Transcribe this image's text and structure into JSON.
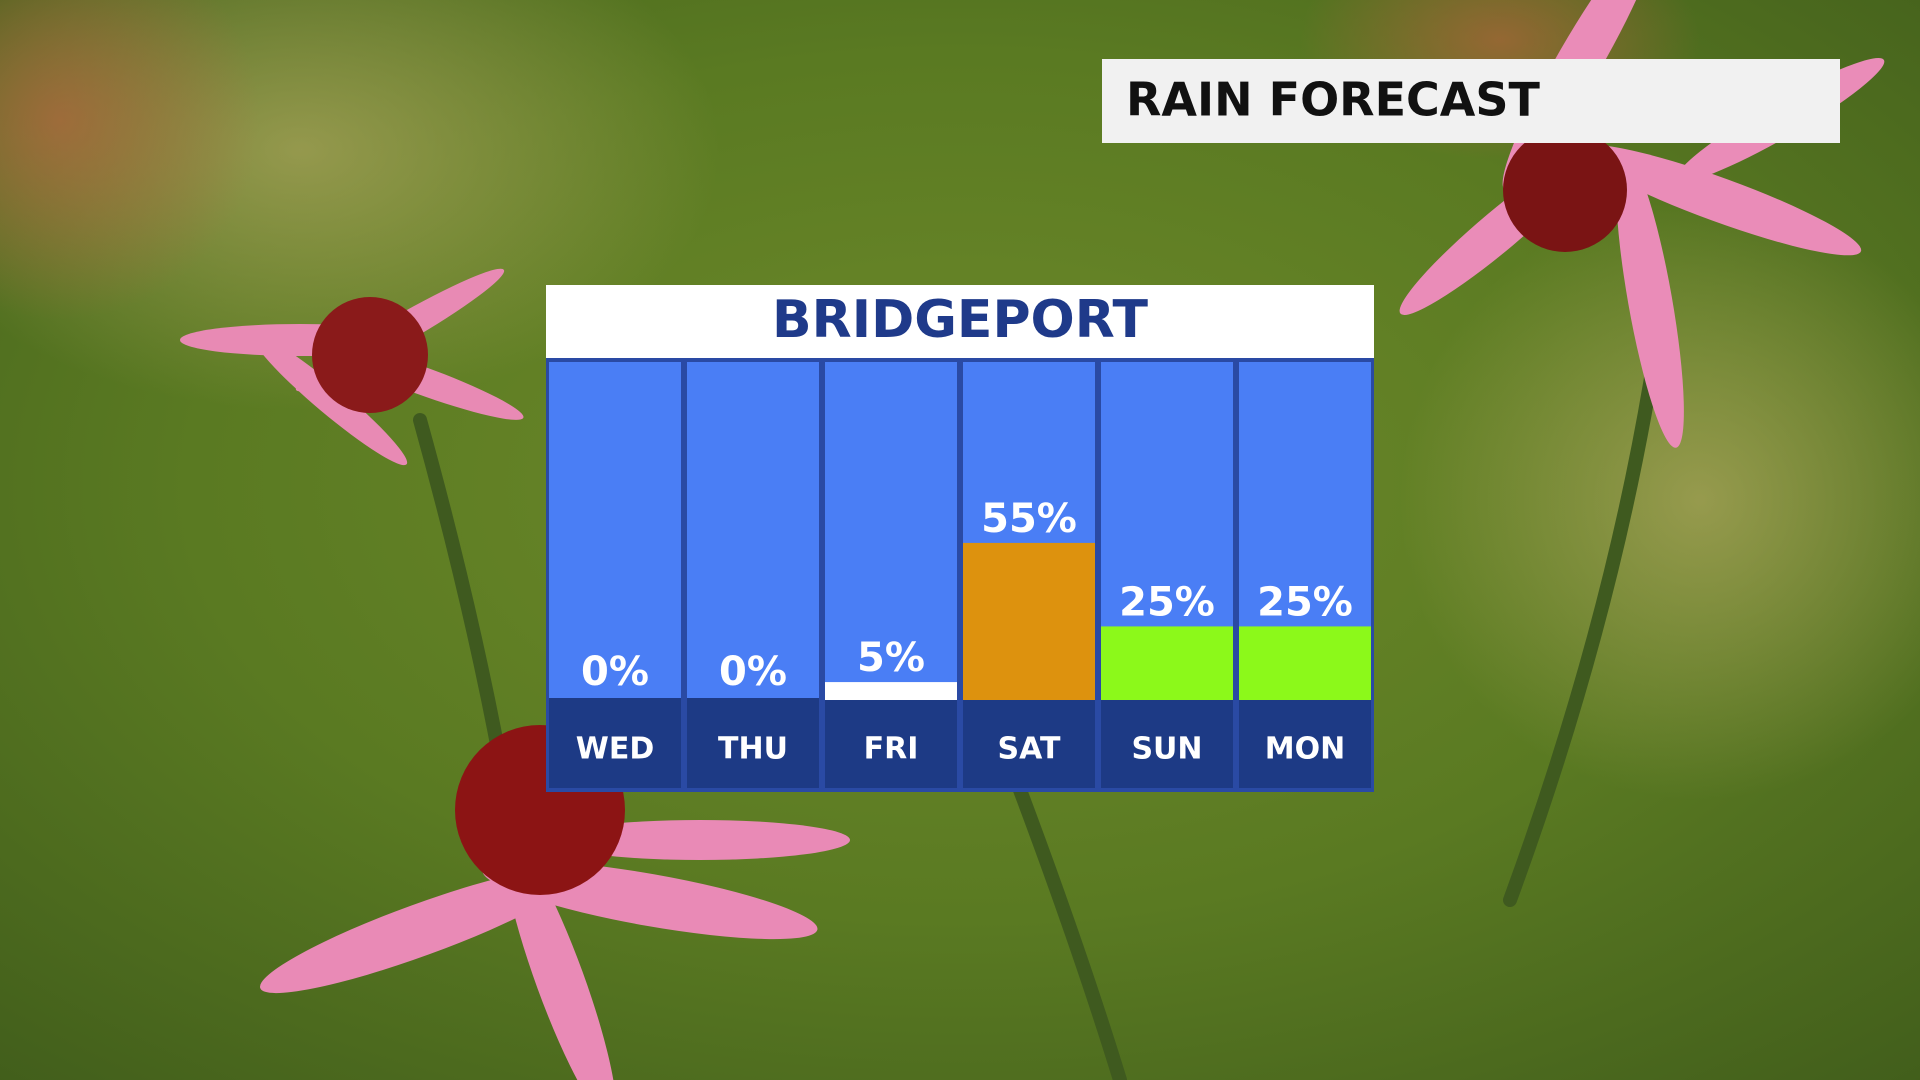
{
  "header": {
    "title": "RAIN FORECAST"
  },
  "chart_data": {
    "type": "bar",
    "title": "BRIDGEPORT",
    "categories": [
      "WED",
      "THU",
      "FRI",
      "SAT",
      "SUN",
      "MON"
    ],
    "values": [
      0,
      0,
      5,
      55,
      25,
      25
    ],
    "value_labels": [
      "0%",
      "0%",
      "5%",
      "55%",
      "25%",
      "25%"
    ],
    "colors": [
      "#ffffff",
      "#ffffff",
      "#ffffff",
      "#dd920e",
      "#8cf91a",
      "#8cf91a"
    ],
    "ylim": [
      0,
      120
    ]
  }
}
